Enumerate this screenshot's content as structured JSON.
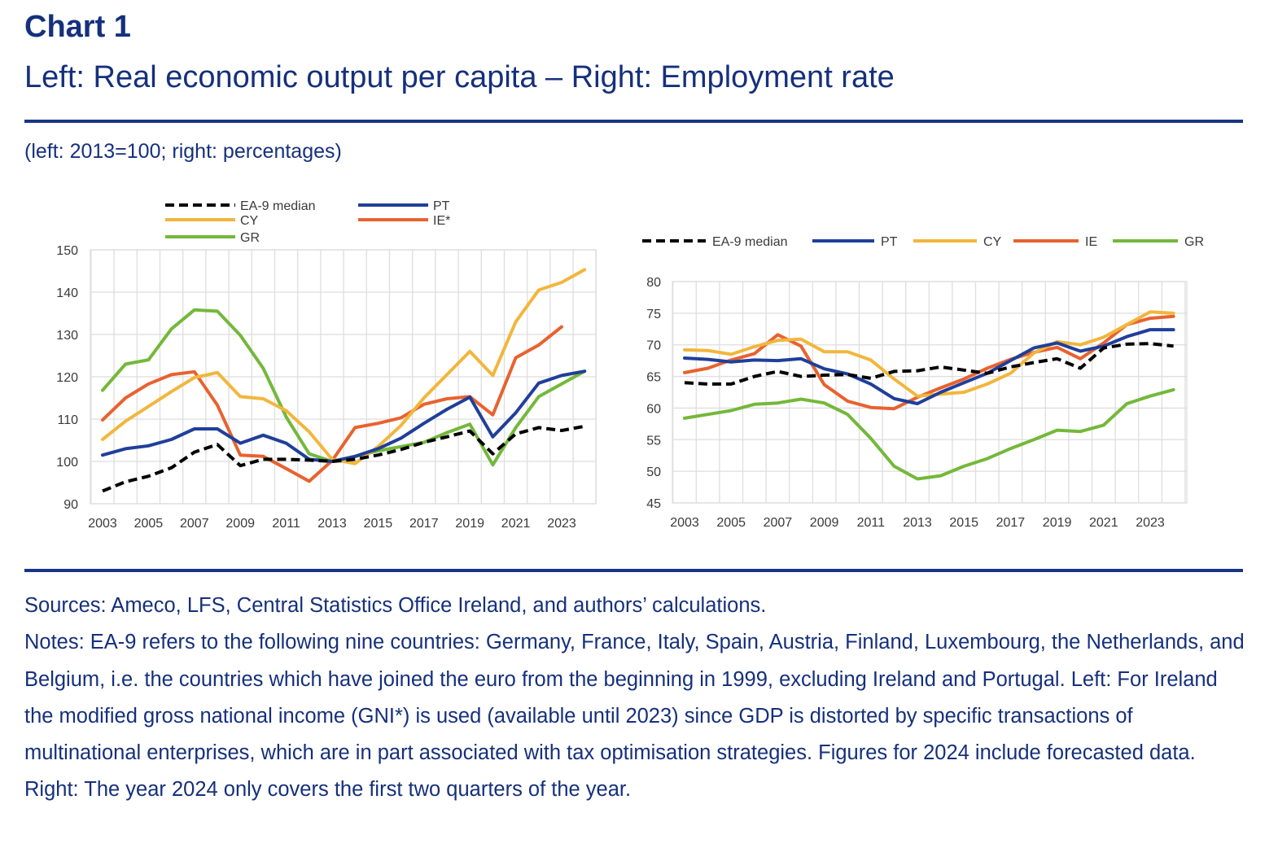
{
  "header": {
    "chart_number": "Chart 1",
    "title": "Left: Real economic output per capita – Right: Employment rate",
    "units": "(left: 2013=100; right: percentages)"
  },
  "footer": {
    "sources": "Sources: Ameco, LFS, Central Statistics Office Ireland, and authors’ calculations.",
    "notes": "Notes: EA-9 refers to the following nine countries: Germany, France, Italy, Spain, Austria, Finland, Luxembourg, the Netherlands, and Belgium, i.e. the countries which have joined the euro from the beginning in 1999, excluding Ireland and Portugal. Left: For Ireland the modified gross national income (GNI*) is used (available until 2023) since GDP is distorted by specific transactions of multinational enterprises, which are in part associated with tax optimisation strategies. Figures for 2024 include forecasted data. Right: The year 2024 only covers the first two quarters of the year."
  },
  "colors": {
    "EA9": "#000000",
    "PT": "#1f3f9a",
    "CY": "#f2b63c",
    "IE": "#e8622f",
    "GR": "#74b83a",
    "grid": "#dedede",
    "brand": "#15307c"
  },
  "chart_data": [
    {
      "type": "line",
      "title": "Real economic output per capita",
      "xlabel": "",
      "ylabel": "2013=100",
      "x": [
        2003,
        2004,
        2005,
        2006,
        2007,
        2008,
        2009,
        2010,
        2011,
        2012,
        2013,
        2014,
        2015,
        2016,
        2017,
        2018,
        2019,
        2020,
        2021,
        2022,
        2023,
        2024
      ],
      "x_tick_labels": [
        "2003",
        "2005",
        "2007",
        "2009",
        "2011",
        "2013",
        "2015",
        "2017",
        "2019",
        "2021",
        "2023"
      ],
      "ylim": [
        90,
        150
      ],
      "y_ticks": [
        90,
        100,
        110,
        120,
        130,
        140,
        150
      ],
      "grid": true,
      "legend_position": "top",
      "series": [
        {
          "name": "EA-9 median",
          "key": "EA9",
          "dashed": true,
          "values": [
            93,
            95.2,
            96.5,
            98.5,
            102.2,
            104,
            99,
            100.5,
            100.5,
            100.3,
            100,
            100.5,
            101.5,
            102.8,
            104.5,
            105.8,
            107.2,
            101.8,
            106.5,
            108,
            107.3,
            108.3
          ]
        },
        {
          "name": "PT",
          "key": "PT",
          "dashed": false,
          "values": [
            101.5,
            103,
            103.7,
            105.2,
            107.7,
            107.7,
            104.3,
            106.2,
            104.3,
            100.5,
            100,
            101.2,
            103,
            105.5,
            109,
            112.3,
            115.2,
            105.8,
            111.5,
            118.5,
            120.3,
            121.3
          ]
        },
        {
          "name": "CY",
          "key": "CY",
          "dashed": false,
          "values": [
            105.2,
            109.5,
            113,
            116.5,
            119.8,
            121,
            115.3,
            114.8,
            112,
            107,
            100.5,
            99.5,
            103.5,
            108.5,
            115,
            120.5,
            126,
            120.3,
            133,
            140.5,
            142.3,
            145.3
          ]
        },
        {
          "name": "IE*",
          "key": "IE",
          "dashed": false,
          "values": [
            109.8,
            115,
            118.3,
            120.5,
            121.2,
            113.3,
            101.5,
            101.2,
            98.3,
            95.3,
            100.2,
            108,
            109,
            110.3,
            113.5,
            114.8,
            115.3,
            111,
            124.5,
            127.5,
            131.8,
            null
          ]
        },
        {
          "name": "GR",
          "key": "GR",
          "dashed": false,
          "values": [
            116.8,
            123,
            124,
            131.3,
            135.8,
            135.5,
            129.8,
            122,
            110.5,
            101.8,
            100,
            101.2,
            102.5,
            103.5,
            104.5,
            106.8,
            108.8,
            99.2,
            108,
            115.3,
            118.3,
            121.3
          ]
        }
      ],
      "legend_order": [
        "EA9",
        "PT",
        "CY",
        "IE",
        "GR"
      ]
    },
    {
      "type": "line",
      "title": "Employment rate",
      "xlabel": "",
      "ylabel": "percentages",
      "x": [
        2003,
        2004,
        2005,
        2006,
        2007,
        2008,
        2009,
        2010,
        2011,
        2012,
        2013,
        2014,
        2015,
        2016,
        2017,
        2018,
        2019,
        2020,
        2021,
        2022,
        2023,
        2024
      ],
      "x_tick_labels": [
        "2003",
        "2005",
        "2007",
        "2009",
        "2011",
        "2013",
        "2015",
        "2017",
        "2019",
        "2021",
        "2023"
      ],
      "ylim": [
        45,
        80
      ],
      "y_ticks": [
        45,
        50,
        55,
        60,
        65,
        70,
        75,
        80
      ],
      "grid": true,
      "legend_position": "top",
      "series": [
        {
          "name": "EA-9 median",
          "key": "EA9",
          "dashed": true,
          "values": [
            64,
            63.8,
            63.8,
            65,
            65.8,
            65,
            65.2,
            65.3,
            64.7,
            65.8,
            65.9,
            66.5,
            66,
            65.5,
            66.5,
            67.2,
            67.8,
            66.3,
            69.5,
            70.1,
            70.2,
            69.8
          ]
        },
        {
          "name": "PT",
          "key": "PT",
          "dashed": false,
          "values": [
            67.9,
            67.7,
            67.3,
            67.6,
            67.5,
            67.8,
            66.2,
            65.4,
            63.8,
            61.5,
            60.7,
            62.5,
            64,
            65.5,
            67.5,
            69.5,
            70.3,
            69,
            69.8,
            71.3,
            72.4,
            72.4
          ]
        },
        {
          "name": "CY",
          "key": "CY",
          "dashed": false,
          "values": [
            69.2,
            69.1,
            68.5,
            69.7,
            70.7,
            70.9,
            68.9,
            68.9,
            67.6,
            64.6,
            61.9,
            62.2,
            62.5,
            63.8,
            65.5,
            68.7,
            70.5,
            70,
            71.2,
            73.2,
            75.2,
            75
          ]
        },
        {
          "name": "IE",
          "key": "IE",
          "dashed": false,
          "values": [
            65.6,
            66.3,
            67.6,
            68.6,
            71.6,
            69.8,
            63.7,
            61.1,
            60.1,
            59.9,
            61.7,
            63.2,
            64.6,
            66.3,
            67.7,
            68.8,
            69.6,
            67.8,
            70.3,
            73.2,
            74.2,
            74.5
          ]
        },
        {
          "name": "GR",
          "key": "GR",
          "dashed": false,
          "values": [
            58.4,
            59,
            59.6,
            60.6,
            60.8,
            61.4,
            60.8,
            59,
            55.2,
            50.8,
            48.8,
            49.3,
            50.8,
            52,
            53.6,
            55,
            56.5,
            56.3,
            57.3,
            60.7,
            61.9,
            62.9
          ]
        }
      ],
      "legend_order": [
        "EA9",
        "PT",
        "CY",
        "IE",
        "GR"
      ]
    }
  ]
}
